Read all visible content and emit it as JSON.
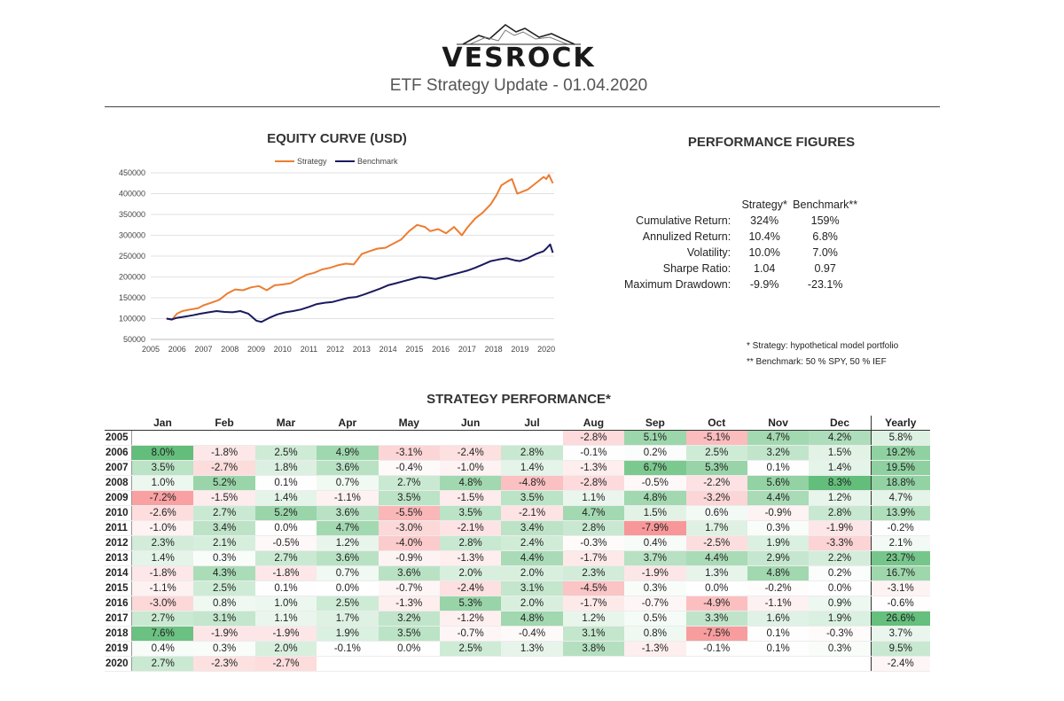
{
  "header": {
    "brand": "VESROCK",
    "subtitle": "ETF Strategy Update - 01.04.2020"
  },
  "sections": {
    "equity_title": "EQUITY CURVE (USD)",
    "performance_title": "PERFORMANCE FIGURES",
    "strategy_title": "STRATEGY PERFORMANCE*"
  },
  "colors": {
    "strategy": "#ed7d31",
    "benchmark": "#1a1a5e",
    "positive": "#63be7b",
    "negative": "#f8696b"
  },
  "chart_data": {
    "type": "line",
    "title": "EQUITY CURVE (USD)",
    "x_ticks": [
      "2005",
      "2006",
      "2007",
      "2008",
      "2009",
      "2010",
      "2011",
      "2012",
      "2013",
      "2014",
      "2015",
      "2016",
      "2017",
      "2018",
      "2019",
      "2020"
    ],
    "y_ticks": [
      "50000",
      "100000",
      "150000",
      "200000",
      "250000",
      "300000",
      "350000",
      "400000",
      "450000"
    ],
    "xlim": [
      2005,
      2020.3
    ],
    "ylim": [
      50000,
      450000
    ],
    "legend_position": "top",
    "series": [
      {
        "name": "Strategy",
        "color": "#ed7d31",
        "x": [
          2005.6,
          2005.8,
          2006.0,
          2006.2,
          2006.5,
          2006.8,
          2007.0,
          2007.3,
          2007.6,
          2007.9,
          2008.2,
          2008.5,
          2008.8,
          2009.1,
          2009.4,
          2009.7,
          2010.0,
          2010.3,
          2010.6,
          2010.9,
          2011.2,
          2011.5,
          2011.8,
          2012.1,
          2012.4,
          2012.7,
          2013.0,
          2013.3,
          2013.6,
          2013.9,
          2014.2,
          2014.5,
          2014.8,
          2015.1,
          2015.4,
          2015.6,
          2015.9,
          2016.2,
          2016.5,
          2016.8,
          2017.0,
          2017.3,
          2017.6,
          2017.9,
          2018.1,
          2018.3,
          2018.5,
          2018.7,
          2018.9,
          2019.1,
          2019.3,
          2019.5,
          2019.7,
          2019.9,
          2020.0,
          2020.1,
          2020.25
        ],
        "y": [
          100000,
          97000,
          112000,
          118000,
          122000,
          125000,
          132000,
          138000,
          145000,
          160000,
          170000,
          168000,
          175000,
          178000,
          168000,
          180000,
          182000,
          185000,
          195000,
          205000,
          210000,
          218000,
          222000,
          228000,
          232000,
          230000,
          255000,
          262000,
          268000,
          270000,
          280000,
          290000,
          310000,
          325000,
          320000,
          310000,
          315000,
          305000,
          320000,
          300000,
          318000,
          340000,
          355000,
          375000,
          395000,
          420000,
          428000,
          435000,
          400000,
          405000,
          410000,
          420000,
          430000,
          440000,
          435000,
          445000,
          425000
        ]
      },
      {
        "name": "Benchmark",
        "color": "#1a1a5e",
        "x": [
          2005.6,
          2005.8,
          2006.0,
          2006.3,
          2006.6,
          2006.9,
          2007.2,
          2007.5,
          2007.8,
          2008.1,
          2008.4,
          2008.7,
          2009.0,
          2009.2,
          2009.5,
          2009.8,
          2010.1,
          2010.4,
          2010.7,
          2011.0,
          2011.3,
          2011.6,
          2011.9,
          2012.2,
          2012.5,
          2012.8,
          2013.1,
          2013.4,
          2013.7,
          2014.0,
          2014.3,
          2014.6,
          2014.9,
          2015.2,
          2015.5,
          2015.8,
          2016.1,
          2016.4,
          2016.7,
          2017.0,
          2017.3,
          2017.6,
          2017.9,
          2018.2,
          2018.5,
          2018.8,
          2019.0,
          2019.3,
          2019.6,
          2019.9,
          2020.0,
          2020.15,
          2020.25
        ],
        "y": [
          100000,
          98000,
          102000,
          105000,
          108000,
          112000,
          115000,
          118000,
          116000,
          115000,
          118000,
          112000,
          95000,
          92000,
          102000,
          110000,
          115000,
          118000,
          122000,
          128000,
          135000,
          138000,
          140000,
          145000,
          150000,
          152000,
          158000,
          165000,
          172000,
          180000,
          185000,
          190000,
          195000,
          200000,
          198000,
          195000,
          200000,
          205000,
          210000,
          215000,
          222000,
          230000,
          238000,
          242000,
          245000,
          240000,
          238000,
          245000,
          255000,
          262000,
          268000,
          278000,
          258000
        ]
      }
    ]
  },
  "performance": {
    "headers": [
      "Strategy*",
      "Benchmark**"
    ],
    "rows": [
      {
        "label": "Cumulative Return:",
        "strategy": "324%",
        "benchmark": "159%"
      },
      {
        "label": "Annulized Return:",
        "strategy": "10.4%",
        "benchmark": "6.8%"
      },
      {
        "label": "Volatility:",
        "strategy": "10.0%",
        "benchmark": "7.0%"
      },
      {
        "label": "Sharpe Ratio:",
        "strategy": "1.04",
        "benchmark": "0.97"
      },
      {
        "label": "Maximum Drawdown:",
        "strategy": "-9.9%",
        "benchmark": "-23.1%"
      }
    ],
    "notes": [
      "* Strategy: hypothetical model portfolio",
      "** Benchmark: 50 % SPY, 50 % IEF"
    ]
  },
  "monthly": {
    "months": [
      "Jan",
      "Feb",
      "Mar",
      "Apr",
      "May",
      "Jun",
      "Jul",
      "Aug",
      "Sep",
      "Oct",
      "Nov",
      "Dec"
    ],
    "yearly_label": "Yearly",
    "rows": [
      {
        "year": "2005",
        "values": [
          null,
          null,
          null,
          null,
          null,
          null,
          null,
          "-2.8%",
          "5.1%",
          "-5.1%",
          "4.7%",
          "4.2%"
        ],
        "yearly": "5.8%"
      },
      {
        "year": "2006",
        "values": [
          "8.0%",
          "-1.8%",
          "2.5%",
          "4.9%",
          "-3.1%",
          "-2.4%",
          "2.8%",
          "-0.1%",
          "0.2%",
          "2.5%",
          "3.2%",
          "1.5%"
        ],
        "yearly": "19.2%"
      },
      {
        "year": "2007",
        "values": [
          "3.5%",
          "-2.7%",
          "1.8%",
          "3.6%",
          "-0.4%",
          "-1.0%",
          "1.4%",
          "-1.3%",
          "6.7%",
          "5.3%",
          "0.1%",
          "1.4%"
        ],
        "yearly": "19.5%"
      },
      {
        "year": "2008",
        "values": [
          "1.0%",
          "5.2%",
          "0.1%",
          "0.7%",
          "2.7%",
          "4.8%",
          "-4.8%",
          "-2.8%",
          "-0.5%",
          "-2.2%",
          "5.6%",
          "8.3%"
        ],
        "yearly": "18.8%"
      },
      {
        "year": "2009",
        "values": [
          "-7.2%",
          "-1.5%",
          "1.4%",
          "-1.1%",
          "3.5%",
          "-1.5%",
          "3.5%",
          "1.1%",
          "4.8%",
          "-3.2%",
          "4.4%",
          "1.2%"
        ],
        "yearly": "4.7%"
      },
      {
        "year": "2010",
        "values": [
          "-2.6%",
          "2.7%",
          "5.2%",
          "3.6%",
          "-5.5%",
          "3.5%",
          "-2.1%",
          "4.7%",
          "1.5%",
          "0.6%",
          "-0.9%",
          "2.8%"
        ],
        "yearly": "13.9%"
      },
      {
        "year": "2011",
        "values": [
          "-1.0%",
          "3.4%",
          "0.0%",
          "4.7%",
          "-3.0%",
          "-2.1%",
          "3.4%",
          "2.8%",
          "-7.9%",
          "1.7%",
          "0.3%",
          "-1.9%"
        ],
        "yearly": "-0.2%"
      },
      {
        "year": "2012",
        "values": [
          "2.3%",
          "2.1%",
          "-0.5%",
          "1.2%",
          "-4.0%",
          "2.8%",
          "2.4%",
          "-0.3%",
          "0.4%",
          "-2.5%",
          "1.9%",
          "-3.3%"
        ],
        "yearly": "2.1%"
      },
      {
        "year": "2013",
        "values": [
          "1.4%",
          "0.3%",
          "2.7%",
          "3.6%",
          "-0.9%",
          "-1.3%",
          "4.4%",
          "-1.7%",
          "3.7%",
          "4.4%",
          "2.9%",
          "2.2%"
        ],
        "yearly": "23.7%"
      },
      {
        "year": "2014",
        "values": [
          "-1.8%",
          "4.3%",
          "-1.8%",
          "0.7%",
          "3.6%",
          "2.0%",
          "2.0%",
          "2.3%",
          "-1.9%",
          "1.3%",
          "4.8%",
          "0.2%"
        ],
        "yearly": "16.7%"
      },
      {
        "year": "2015",
        "values": [
          "-1.1%",
          "2.5%",
          "0.1%",
          "0.0%",
          "-0.7%",
          "-2.4%",
          "3.1%",
          "-4.5%",
          "0.3%",
          "0.0%",
          "-0.2%",
          "0.0%"
        ],
        "yearly": "-3.1%"
      },
      {
        "year": "2016",
        "values": [
          "-3.0%",
          "0.8%",
          "1.0%",
          "2.5%",
          "-1.3%",
          "5.3%",
          "2.0%",
          "-1.7%",
          "-0.7%",
          "-4.9%",
          "-1.1%",
          "0.9%"
        ],
        "yearly": "-0.6%"
      },
      {
        "year": "2017",
        "values": [
          "2.7%",
          "3.1%",
          "1.1%",
          "1.7%",
          "3.2%",
          "-1.2%",
          "4.8%",
          "1.2%",
          "0.5%",
          "3.3%",
          "1.6%",
          "1.9%"
        ],
        "yearly": "26.6%"
      },
      {
        "year": "2018",
        "values": [
          "7.6%",
          "-1.9%",
          "-1.9%",
          "1.9%",
          "3.5%",
          "-0.7%",
          "-0.4%",
          "3.1%",
          "0.8%",
          "-7.5%",
          "0.1%",
          "-0.3%"
        ],
        "yearly": "3.7%"
      },
      {
        "year": "2019",
        "values": [
          "0.4%",
          "0.3%",
          "2.0%",
          "-0.1%",
          "0.0%",
          "2.5%",
          "1.3%",
          "3.8%",
          "-1.3%",
          "-0.1%",
          "0.1%",
          "0.3%"
        ],
        "yearly": "9.5%"
      },
      {
        "year": "2020",
        "values": [
          "2.7%",
          "-2.3%",
          "-2.7%",
          null,
          null,
          null,
          null,
          null,
          null,
          null,
          null,
          null
        ],
        "yearly": "-2.4%"
      }
    ]
  }
}
